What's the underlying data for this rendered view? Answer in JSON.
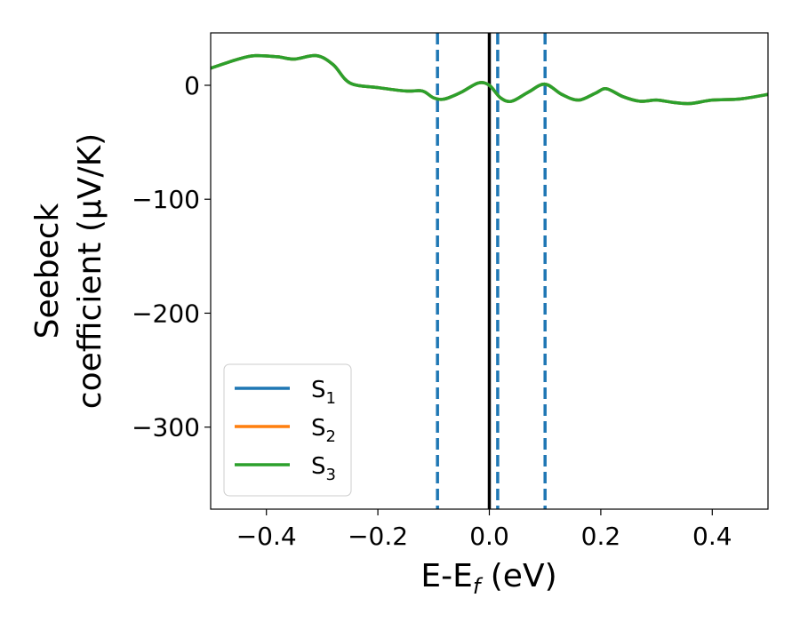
{
  "chart_data": {
    "type": "line",
    "xlabel": "E-E",
    "xlabel_sub": "f",
    "xlabel_unit": " (eV)",
    "ylabel_line1": "Seebeck",
    "ylabel_line2": "coefficient  (μV/K)",
    "xlim": [
      -0.5,
      0.5
    ],
    "ylim": [
      -372,
      46
    ],
    "xticks": [
      -0.4,
      -0.2,
      0.0,
      0.2,
      0.4
    ],
    "xtick_labels": [
      "−0.4",
      "−0.2",
      "0.0",
      "0.2",
      "0.4"
    ],
    "yticks": [
      0,
      -100,
      -200,
      -300
    ],
    "ytick_labels": [
      "0",
      "−100",
      "−200",
      "−300"
    ],
    "grid": false,
    "legend_position": "lower-left",
    "vertical_lines": [
      {
        "x": 0.0,
        "style": "solid",
        "color": "#000000"
      },
      {
        "x": -0.093,
        "style": "dashed",
        "color": "#1f77b4"
      },
      {
        "x": 0.015,
        "style": "dashed",
        "color": "#1f77b4"
      },
      {
        "x": 0.1,
        "style": "dashed",
        "color": "#1f77b4"
      }
    ],
    "x": [
      -0.5,
      -0.45,
      -0.42,
      -0.38,
      -0.35,
      -0.31,
      -0.28,
      -0.25,
      -0.2,
      -0.15,
      -0.12,
      -0.1,
      -0.08,
      -0.05,
      -0.02,
      0.0,
      0.02,
      0.04,
      0.07,
      0.1,
      0.13,
      0.16,
      0.19,
      0.21,
      0.24,
      0.27,
      0.3,
      0.33,
      0.36,
      0.4,
      0.45,
      0.5
    ],
    "series": [
      {
        "name": "S",
        "name_sub": "1",
        "color": "#1f77b4",
        "values": [
          15,
          23,
          26,
          25,
          23,
          26,
          18,
          2,
          -2,
          -5,
          -5,
          -11,
          -12,
          -6,
          2,
          0,
          -11,
          -14,
          -6,
          1,
          -8,
          -13,
          -7,
          -3,
          -10,
          -14,
          -13,
          -15,
          -16,
          -13,
          -12,
          -8
        ]
      },
      {
        "name": "S",
        "name_sub": "2",
        "color": "#ff7f0e",
        "values": [
          15,
          23,
          26,
          25,
          23,
          26,
          18,
          2,
          -2,
          -5,
          -5,
          -11,
          -12,
          -6,
          2,
          0,
          -11,
          -14,
          -6,
          1,
          -8,
          -13,
          -7,
          -3,
          -10,
          -14,
          -13,
          -15,
          -16,
          -13,
          -12,
          -8
        ]
      },
      {
        "name": "S",
        "name_sub": "3",
        "color": "#2ca02c",
        "values": [
          15,
          23,
          26,
          25,
          23,
          26,
          18,
          2,
          -2,
          -5,
          -5,
          -11,
          -12,
          -6,
          2,
          0,
          -11,
          -14,
          -6,
          1,
          -8,
          -13,
          -7,
          -3,
          -10,
          -14,
          -13,
          -15,
          -16,
          -13,
          -12,
          -8
        ]
      }
    ]
  }
}
